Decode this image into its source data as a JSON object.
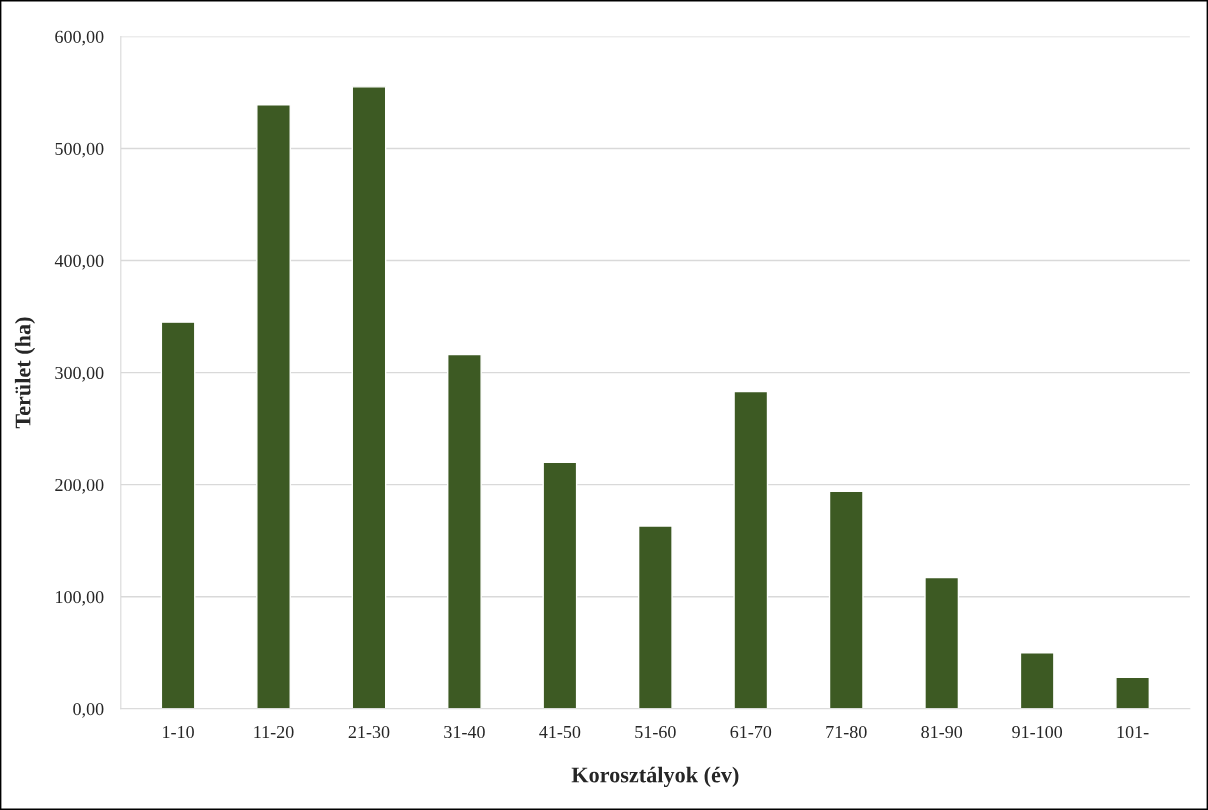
{
  "chart_data": {
    "type": "bar",
    "xlabel": "Korosztályok (év)",
    "ylabel": "Terület (ha)",
    "categories": [
      "1-10",
      "11-20",
      "21-30",
      "31-40",
      "41-50",
      "51-60",
      "61-70",
      "71-80",
      "81-90",
      "91-100",
      "101-"
    ],
    "values": [
      345,
      539,
      555,
      316,
      220,
      163,
      283,
      194,
      117,
      50,
      28
    ],
    "color": "#3d5a23",
    "ylim": [
      0,
      600
    ],
    "yticks": [
      {
        "value": 0,
        "label": "0,00"
      },
      {
        "value": 100,
        "label": "100,00"
      },
      {
        "value": 200,
        "label": "200,00"
      },
      {
        "value": 300,
        "label": "300,00"
      },
      {
        "value": 400,
        "label": "400,00"
      },
      {
        "value": 500,
        "label": "500,00"
      },
      {
        "value": 600,
        "label": "600,00"
      }
    ],
    "grid": "y",
    "legend": false
  }
}
